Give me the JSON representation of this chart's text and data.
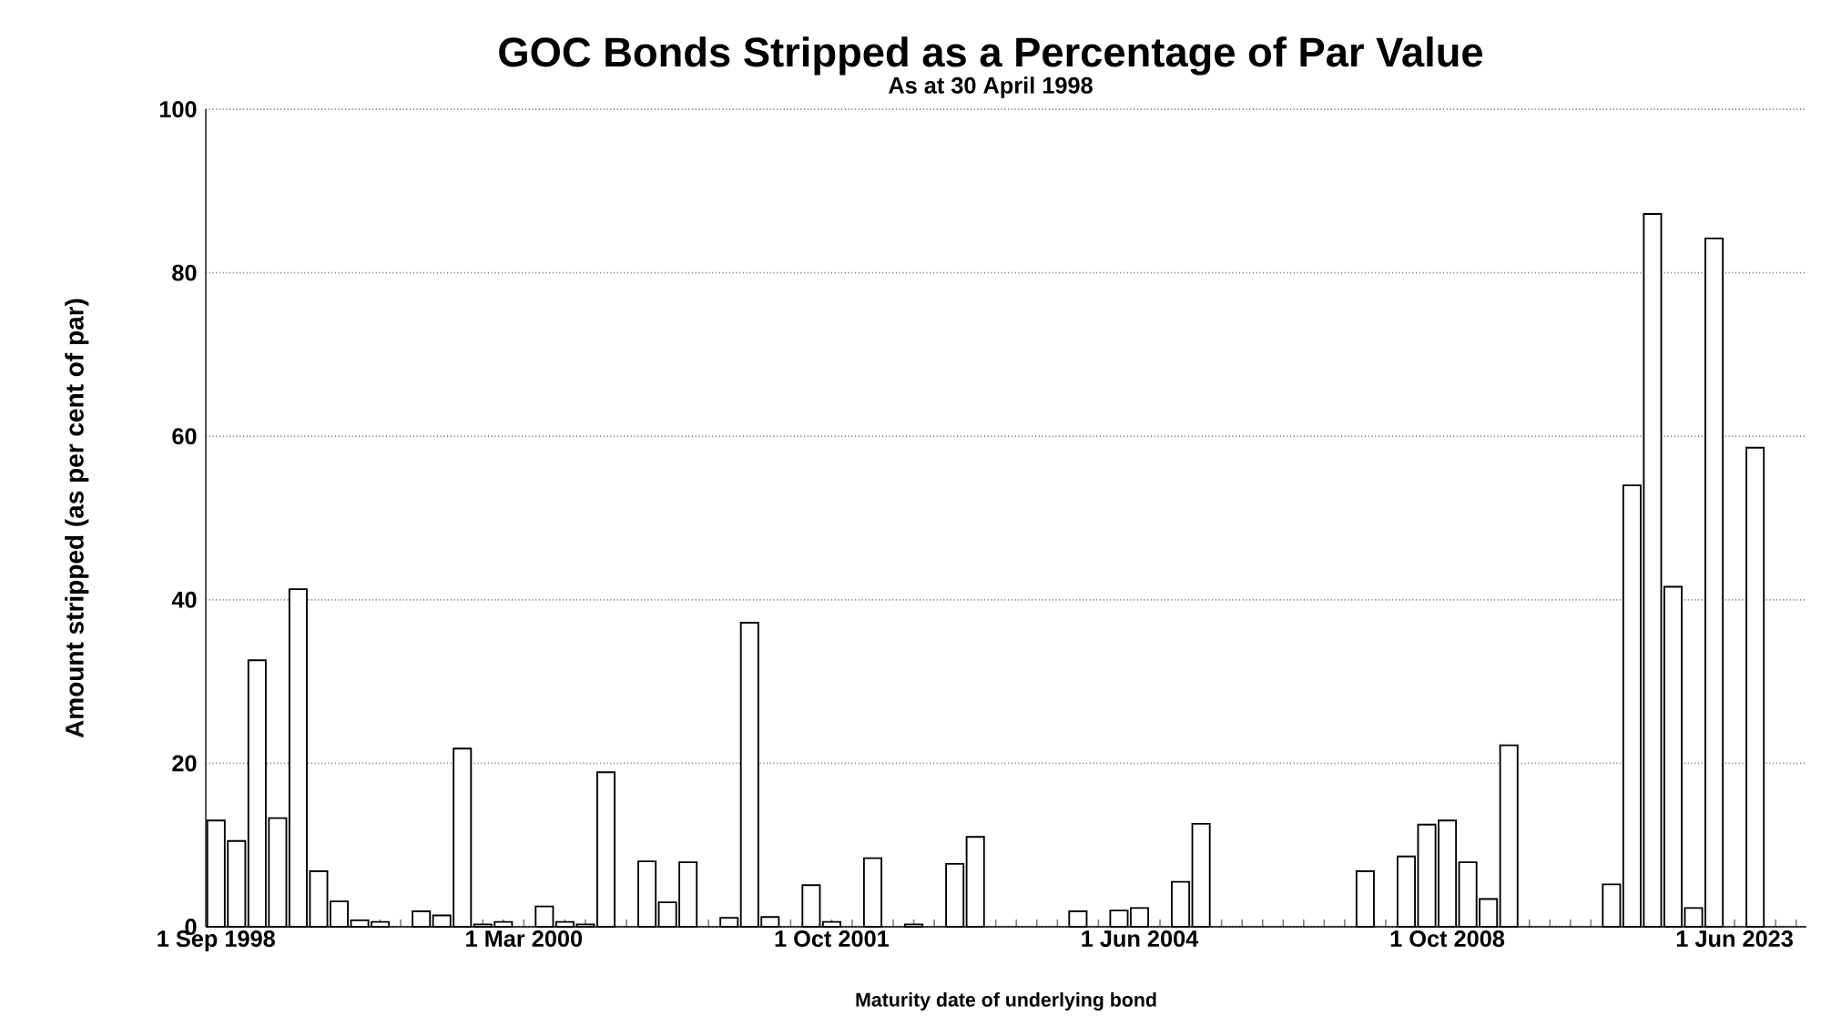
{
  "chart_data": {
    "type": "bar",
    "title": "GOC Bonds Stripped as a Percentage of Par Value",
    "subtitle": "As at 30 April 1998",
    "xlabel": "Maturity date of underlying bond",
    "ylabel": "Amount stripped (as per cent of par)",
    "categories": [
      "1 Sep 1998",
      null,
      null,
      null,
      null,
      null,
      null,
      null,
      null,
      null,
      null,
      null,
      null,
      null,
      null,
      "1 Mar 2000",
      null,
      null,
      null,
      null,
      null,
      null,
      null,
      null,
      null,
      null,
      null,
      null,
      null,
      null,
      "1 Oct 2001",
      null,
      null,
      null,
      null,
      null,
      null,
      null,
      null,
      null,
      null,
      null,
      null,
      null,
      null,
      "1 Jun 2004",
      null,
      null,
      null,
      null,
      null,
      null,
      null,
      null,
      null,
      null,
      null,
      null,
      null,
      null,
      "1 Oct 2008",
      null,
      null,
      null,
      null,
      null,
      null,
      null,
      null,
      null,
      null,
      null,
      null,
      null,
      "1 Jun 2023",
      null,
      null,
      null
    ],
    "values": [
      13.0,
      10.5,
      32.6,
      13.3,
      41.3,
      6.8,
      3.1,
      0.8,
      0.6,
      null,
      1.9,
      1.4,
      21.8,
      0.3,
      0.6,
      null,
      2.5,
      0.6,
      0.3,
      18.9,
      null,
      8.0,
      3.0,
      7.9,
      null,
      1.1,
      37.2,
      1.2,
      null,
      5.1,
      0.6,
      null,
      8.4,
      null,
      0.3,
      null,
      7.7,
      11.0,
      null,
      null,
      null,
      null,
      1.9,
      null,
      2.0,
      2.3,
      null,
      5.5,
      12.6,
      null,
      null,
      null,
      null,
      null,
      null,
      null,
      6.8,
      null,
      8.6,
      12.5,
      13.0,
      7.9,
      3.4,
      22.2,
      null,
      null,
      null,
      null,
      5.2,
      54.0,
      87.2,
      41.6,
      2.3,
      84.2,
      null,
      58.6,
      null,
      null
    ],
    "color": "#ffffff",
    "ylim": [
      0,
      100
    ],
    "yticks": [
      0,
      20,
      40,
      60,
      80,
      100
    ],
    "grid": "y"
  }
}
